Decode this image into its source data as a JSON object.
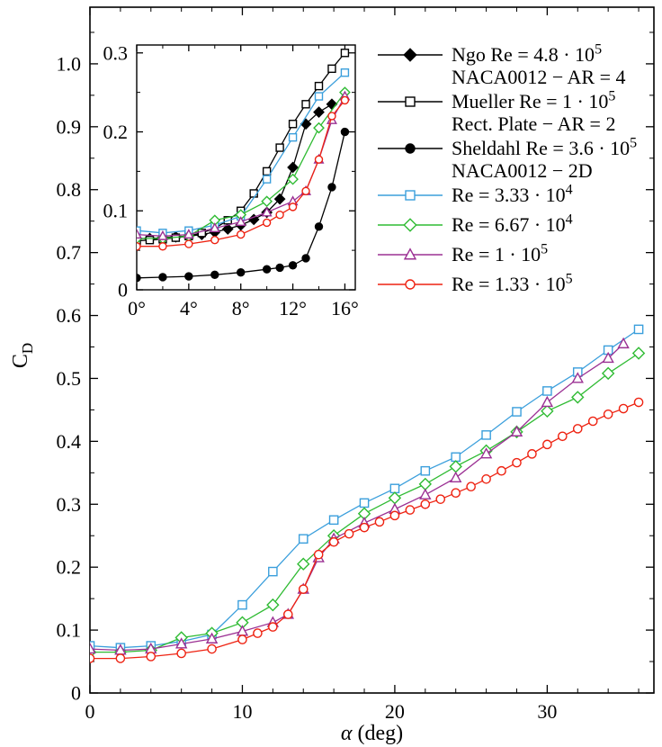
{
  "figure": {
    "background": "#ffffff"
  },
  "chart_data": {
    "type": "line",
    "title": "",
    "xlabel": {
      "symbol": "α",
      "rest": " (deg)"
    },
    "ylabel": {
      "base": "C",
      "sub": "D"
    },
    "main_axes": {
      "xlim": [
        0,
        37
      ],
      "ylim": [
        0,
        1.09
      ],
      "xticks": [
        0,
        10,
        20,
        30
      ],
      "xtick_labels": [
        "0",
        "10",
        "20",
        "30"
      ],
      "xminor_step": 2,
      "yticks": [
        0,
        0.1,
        0.2,
        0.3,
        0.4,
        0.5,
        0.6,
        0.7,
        0.8,
        0.9,
        1.0
      ],
      "ytick_labels": [
        "0",
        "0.1",
        "0.2",
        "0.3",
        "0.4",
        "0.5",
        "0.6",
        "0.7",
        "0.8",
        "0.9",
        "1.0"
      ],
      "yminor_step": 0.05,
      "grid": false
    },
    "inset_axes": {
      "xlim": [
        0,
        16.8
      ],
      "ylim": [
        0,
        0.31
      ],
      "xticks": [
        0,
        4,
        8,
        12,
        16
      ],
      "xtick_labels": [
        "0°",
        "4°",
        "8°",
        "12°",
        "16°"
      ],
      "xminor_step": 2,
      "yticks": [
        0,
        0.1,
        0.2,
        0.3
      ],
      "ytick_labels": [
        "0",
        "0.1",
        "0.2",
        "0.3"
      ],
      "yminor_step": 0.05,
      "grid": false
    },
    "series": [
      {
        "id": "ngo",
        "legend_lines": [
          "Ngo Re = 4.8 · 10^5",
          "NACA0012 − AR = 4"
        ],
        "color": "#000000",
        "marker": "diamond",
        "filled": true,
        "plots": [
          "inset"
        ],
        "x": [
          0,
          1,
          2,
          3,
          4,
          5,
          6,
          7,
          8,
          9,
          10,
          11,
          12,
          13,
          14,
          15
        ],
        "y": [
          0.065,
          0.065,
          0.066,
          0.067,
          0.068,
          0.07,
          0.073,
          0.077,
          0.082,
          0.089,
          0.098,
          0.115,
          0.155,
          0.21,
          0.225,
          0.235
        ]
      },
      {
        "id": "mueller",
        "legend_lines": [
          "Mueller Re = 1 · 10^5",
          "Rect. Plate − AR = 2"
        ],
        "color": "#000000",
        "marker": "square",
        "filled": false,
        "plots": [
          "inset"
        ],
        "x": [
          0,
          1,
          2,
          3,
          4,
          5,
          6,
          7,
          8,
          9,
          10,
          11,
          12,
          13,
          14,
          15,
          16
        ],
        "y": [
          0.062,
          0.063,
          0.064,
          0.066,
          0.068,
          0.072,
          0.078,
          0.088,
          0.1,
          0.122,
          0.15,
          0.18,
          0.21,
          0.235,
          0.258,
          0.28,
          0.3
        ]
      },
      {
        "id": "sheldahl",
        "legend_lines": [
          "Sheldahl Re = 3.6 · 10^5",
          "NACA0012 − 2D"
        ],
        "color": "#000000",
        "marker": "circle",
        "filled": true,
        "plots": [
          "inset"
        ],
        "x": [
          0,
          2,
          4,
          6,
          8,
          10,
          11,
          12,
          13,
          14,
          15,
          16
        ],
        "y": [
          0.015,
          0.016,
          0.017,
          0.019,
          0.022,
          0.026,
          0.028,
          0.031,
          0.04,
          0.08,
          0.13,
          0.2
        ]
      },
      {
        "id": "re333e4",
        "legend_lines": [
          "Re = 3.33 · 10^4"
        ],
        "color": "#3b9fdc",
        "marker": "square",
        "filled": false,
        "plots": [
          "main",
          "inset"
        ],
        "x": [
          0,
          2,
          4,
          6,
          8,
          10,
          12,
          14,
          16,
          18,
          20,
          22,
          24,
          26,
          28,
          30,
          32,
          34,
          36
        ],
        "y": [
          0.075,
          0.072,
          0.075,
          0.082,
          0.093,
          0.14,
          0.193,
          0.245,
          0.275,
          0.302,
          0.325,
          0.353,
          0.375,
          0.41,
          0.447,
          0.48,
          0.51,
          0.545,
          0.578
        ]
      },
      {
        "id": "re667e4",
        "legend_lines": [
          "Re = 6.67 · 10^4"
        ],
        "color": "#2fbb33",
        "marker": "diamond",
        "filled": false,
        "plots": [
          "main",
          "inset"
        ],
        "x": [
          0,
          2,
          4,
          6,
          8,
          10,
          12,
          14,
          16,
          18,
          20,
          22,
          24,
          26,
          28,
          30,
          32,
          34,
          36
        ],
        "y": [
          0.065,
          0.065,
          0.068,
          0.088,
          0.095,
          0.112,
          0.14,
          0.205,
          0.25,
          0.285,
          0.31,
          0.332,
          0.36,
          0.385,
          0.415,
          0.448,
          0.47,
          0.508,
          0.54
        ]
      },
      {
        "id": "re1e5",
        "legend_lines": [
          "Re = 1 · 10^5"
        ],
        "color": "#9b3093",
        "marker": "triangle",
        "filled": false,
        "plots": [
          "main",
          "inset"
        ],
        "x": [
          0,
          2,
          4,
          6,
          8,
          10,
          12,
          13,
          14,
          15,
          16,
          18,
          20,
          22,
          24,
          26,
          28,
          30,
          32,
          34,
          35
        ],
        "y": [
          0.07,
          0.068,
          0.07,
          0.078,
          0.086,
          0.098,
          0.112,
          0.125,
          0.165,
          0.215,
          0.245,
          0.27,
          0.292,
          0.315,
          0.342,
          0.38,
          0.415,
          0.462,
          0.5,
          0.532,
          0.555
        ]
      },
      {
        "id": "re133e5",
        "legend_lines": [
          "Re = 1.33 · 10^5"
        ],
        "color": "#ee2211",
        "marker": "circle",
        "filled": false,
        "plots": [
          "main",
          "inset"
        ],
        "x": [
          0,
          2,
          4,
          6,
          8,
          10,
          11,
          12,
          13,
          14,
          15,
          16,
          17,
          18,
          19,
          20,
          21,
          22,
          23,
          24,
          25,
          26,
          27,
          28,
          29,
          30,
          31,
          32,
          33,
          34,
          35,
          36
        ],
        "y": [
          0.055,
          0.055,
          0.058,
          0.063,
          0.07,
          0.085,
          0.095,
          0.105,
          0.125,
          0.165,
          0.22,
          0.24,
          0.253,
          0.263,
          0.272,
          0.282,
          0.291,
          0.3,
          0.308,
          0.318,
          0.328,
          0.34,
          0.353,
          0.366,
          0.38,
          0.395,
          0.408,
          0.42,
          0.432,
          0.443,
          0.452,
          0.462
        ]
      }
    ]
  }
}
